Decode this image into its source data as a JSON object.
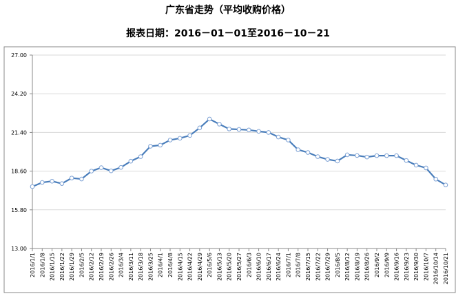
{
  "chart_data": {
    "type": "line",
    "title": "广东省走势（平均收购价格）",
    "subtitle": "报表日期：2016－01－01至2016－10－21",
    "xlabel": "",
    "ylabel": "",
    "ylim": [
      13.0,
      27.0
    ],
    "yticks": [
      "13.00",
      "15.80",
      "18.60",
      "21.40",
      "24.20",
      "27.00"
    ],
    "grid": "horizontal",
    "line_color": "#4a7ebb",
    "categories": [
      "2016/1/1",
      "2016/1/8",
      "2016/1/15",
      "2016/1/22",
      "2016/1/29",
      "2016/2/5",
      "2016/2/12",
      "2016/2/19",
      "2016/2/26",
      "2016/3/4",
      "2016/3/11",
      "2016/3/18",
      "2016/3/25",
      "2016/4/1",
      "2016/4/8",
      "2016/4/15",
      "2016/4/22",
      "2016/4/29",
      "2016/5/6",
      "2016/5/13",
      "2016/5/20",
      "2016/5/27",
      "2016/6/3",
      "2016/6/10",
      "2016/6/17",
      "2016/6/24",
      "2016/7/1",
      "2016/7/8",
      "2016/7/15",
      "2016/7/22",
      "2016/7/29",
      "2016/8/5",
      "2016/8/12",
      "2016/8/19",
      "2016/8/26",
      "2016/9/2",
      "2016/9/9",
      "2016/9/16",
      "2016/9/23",
      "2016/9/30",
      "2016/10/7",
      "2016/10/14",
      "2016/10/21"
    ],
    "values": [
      17.48,
      17.78,
      17.87,
      17.7,
      18.1,
      18.03,
      18.6,
      18.85,
      18.62,
      18.87,
      19.32,
      19.65,
      20.4,
      20.48,
      20.85,
      20.98,
      21.18,
      21.73,
      22.37,
      22.0,
      21.65,
      21.62,
      21.58,
      21.48,
      21.4,
      21.07,
      20.85,
      20.15,
      19.95,
      19.65,
      19.45,
      19.33,
      19.78,
      19.73,
      19.62,
      19.72,
      19.72,
      19.72,
      19.37,
      19.03,
      18.83,
      18.02,
      17.6
    ]
  }
}
